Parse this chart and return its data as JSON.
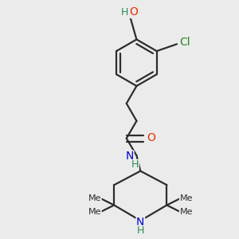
{
  "bg_color": "#ebebeb",
  "bond_color": "#2d2d2d",
  "bond_width": 1.6,
  "atom_colors": {
    "O": "#e63000",
    "N": "#0000cc",
    "Cl": "#228b22",
    "H_teal": "#2e8b57",
    "C": "#2d2d2d"
  },
  "font_size_atom": 10,
  "xlim": [
    -1.3,
    1.3
  ],
  "ylim": [
    -1.5,
    1.5
  ]
}
